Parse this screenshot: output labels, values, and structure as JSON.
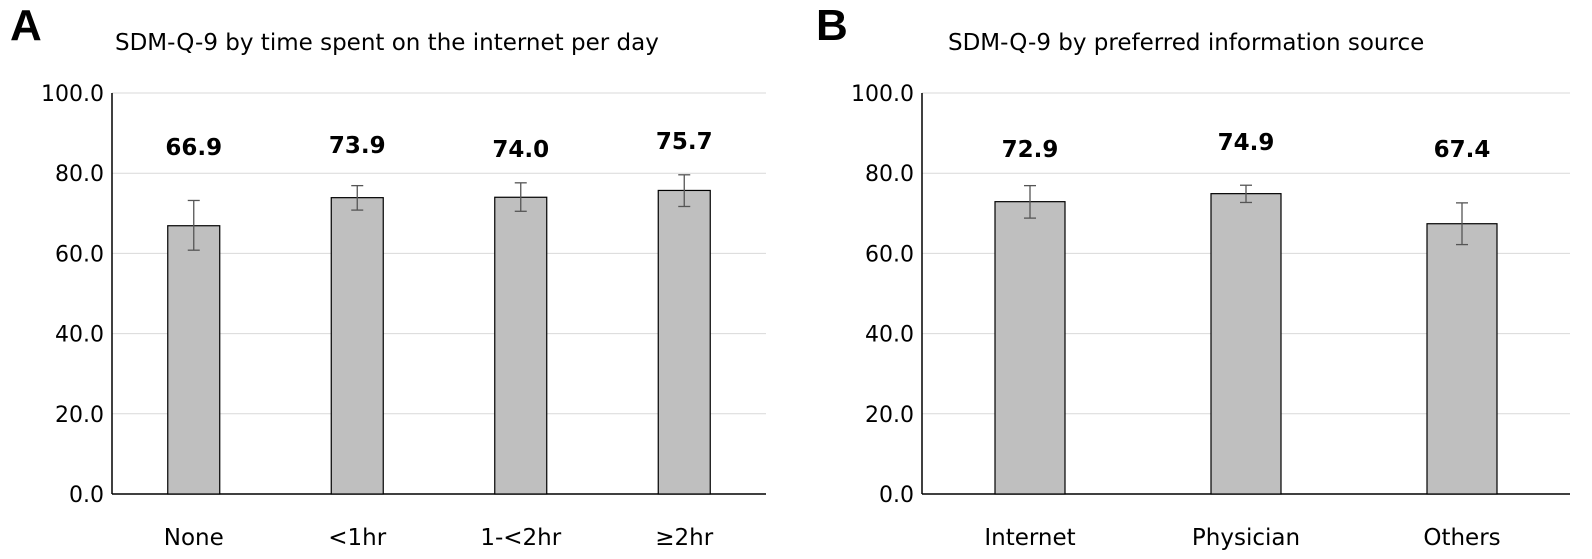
{
  "chart_data": [
    {
      "panel_letter": "A",
      "type": "bar",
      "title": "SDM-Q-9 by time spent on the internet per day",
      "categories": [
        "None",
        "<1hr",
        "1-<2hr",
        "≥2hr"
      ],
      "values": [
        66.9,
        73.9,
        74.0,
        75.7
      ],
      "value_labels": [
        "66.9",
        "73.9",
        "74.0",
        "75.7"
      ],
      "error_low": [
        60.8,
        70.8,
        70.5,
        71.7
      ],
      "error_high": [
        73.2,
        76.9,
        77.6,
        79.6
      ],
      "ylim": [
        0,
        100
      ],
      "yticks": [
        "0.0",
        "20.0",
        "40.0",
        "60.0",
        "80.0",
        "100.0"
      ],
      "grid": true,
      "bar_color": "#bfbfbf"
    },
    {
      "panel_letter": "B",
      "type": "bar",
      "title": "SDM-Q-9 by preferred information source",
      "categories": [
        "Internet",
        "Physician",
        "Others"
      ],
      "values": [
        72.9,
        74.9,
        67.4
      ],
      "value_labels": [
        "72.9",
        "74.9",
        "67.4"
      ],
      "error_low": [
        68.8,
        72.7,
        62.2
      ],
      "error_high": [
        76.9,
        77.0,
        72.6
      ],
      "ylim": [
        0,
        100
      ],
      "yticks": [
        "0.0",
        "20.0",
        "40.0",
        "60.0",
        "80.0",
        "100.0"
      ],
      "grid": true,
      "bar_color": "#bfbfbf"
    }
  ]
}
